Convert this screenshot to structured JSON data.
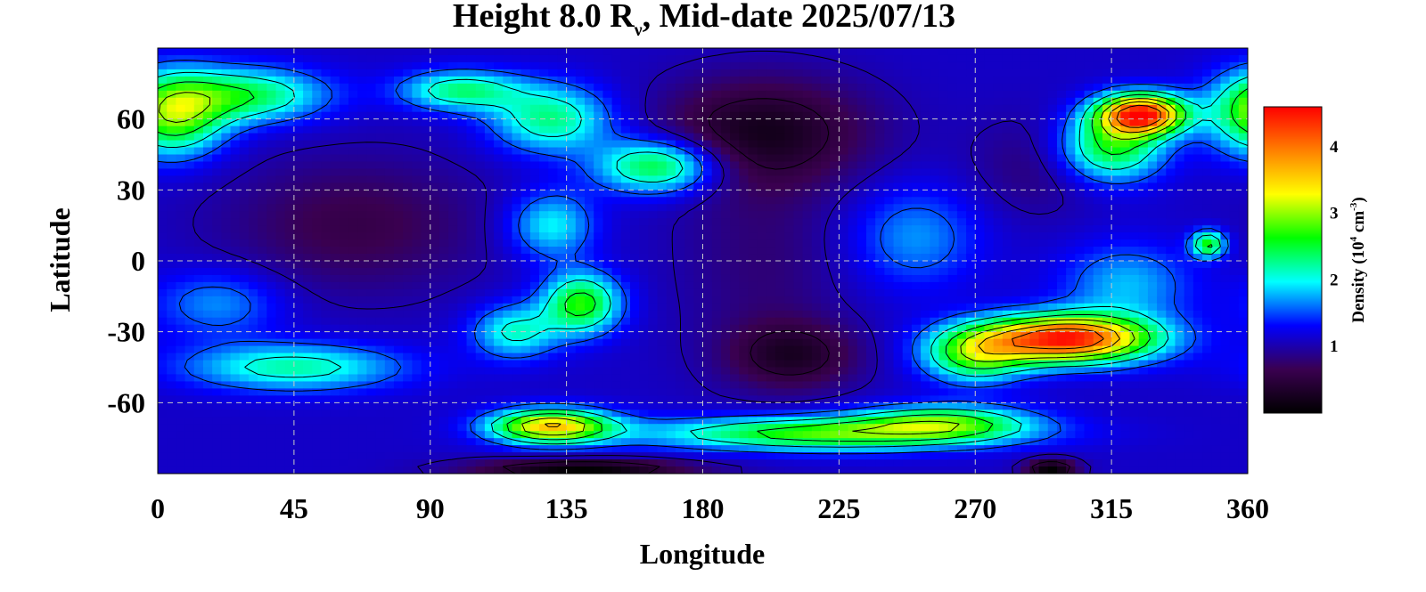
{
  "chart_data": {
    "type": "heatmap",
    "title": {
      "prefix": "Height 8.0 R",
      "subscript": "ν",
      "suffix": ", Mid-date 2025/07/13"
    },
    "xlabel": "Longitude",
    "ylabel": "Latitude",
    "xlim": [
      0,
      360
    ],
    "ylim": [
      -90,
      90
    ],
    "x_ticks": [
      0,
      45,
      90,
      135,
      180,
      225,
      270,
      315,
      360
    ],
    "y_ticks": [
      60,
      30,
      0,
      -30,
      -60
    ],
    "y_tick_labels": [
      "60",
      "30",
      "0",
      "-30",
      "-60"
    ],
    "grid": true,
    "colorbar": {
      "label_prefix": "Density (10",
      "label_exp": "4",
      "label_suffix": " cm",
      "label_exp2": "-3",
      "label_close": ")",
      "range": [
        0,
        4.6
      ],
      "ticks": [
        1,
        2,
        3,
        4
      ],
      "tick_labels": [
        "1",
        "2",
        "3",
        "4"
      ],
      "colormap": [
        "#000000",
        "#3a0050",
        "#0000ff",
        "#00ffff",
        "#00ff00",
        "#ffff00",
        "#ff8000",
        "#ff0000"
      ]
    },
    "contour_levels": [
      0.5,
      1.0,
      1.5,
      2.0,
      2.5,
      3.0,
      3.5,
      4.0
    ],
    "background_level": 1.1,
    "features": [
      {
        "lon": 5,
        "lat": 62,
        "value": 2.9,
        "sigma_lon": 12,
        "sigma_lat": 12
      },
      {
        "lon": 30,
        "lat": 70,
        "value": 2.4,
        "sigma_lon": 18,
        "sigma_lat": 8
      },
      {
        "lon": 100,
        "lat": 72,
        "value": 2.3,
        "sigma_lon": 14,
        "sigma_lat": 6
      },
      {
        "lon": 130,
        "lat": 60,
        "value": 2.3,
        "sigma_lon": 14,
        "sigma_lat": 10
      },
      {
        "lon": 165,
        "lat": 40,
        "value": 2.6,
        "sigma_lon": 14,
        "sigma_lat": 8
      },
      {
        "lon": 130,
        "lat": 15,
        "value": 2.0,
        "sigma_lon": 10,
        "sigma_lat": 10
      },
      {
        "lon": 140,
        "lat": -18,
        "value": 2.7,
        "sigma_lon": 9,
        "sigma_lat": 9
      },
      {
        "lon": 118,
        "lat": -30,
        "value": 2.1,
        "sigma_lon": 10,
        "sigma_lat": 8
      },
      {
        "lon": 45,
        "lat": -45,
        "value": 2.2,
        "sigma_lon": 25,
        "sigma_lat": 7
      },
      {
        "lon": 20,
        "lat": -18,
        "value": 1.7,
        "sigma_lon": 15,
        "sigma_lat": 10
      },
      {
        "lon": 130,
        "lat": -70,
        "value": 3.5,
        "sigma_lon": 14,
        "sigma_lat": 5
      },
      {
        "lon": 220,
        "lat": -73,
        "value": 2.8,
        "sigma_lon": 40,
        "sigma_lat": 5
      },
      {
        "lon": 260,
        "lat": -68,
        "value": 2.4,
        "sigma_lon": 20,
        "sigma_lat": 5
      },
      {
        "lon": 300,
        "lat": -33,
        "value": 4.5,
        "sigma_lon": 20,
        "sigma_lat": 7
      },
      {
        "lon": 270,
        "lat": -40,
        "value": 2.6,
        "sigma_lon": 12,
        "sigma_lat": 8
      },
      {
        "lon": 325,
        "lat": 62,
        "value": 4.4,
        "sigma_lon": 10,
        "sigma_lat": 6
      },
      {
        "lon": 315,
        "lat": 48,
        "value": 2.6,
        "sigma_lon": 12,
        "sigma_lat": 10
      },
      {
        "lon": 347,
        "lat": 7,
        "value": 2.6,
        "sigma_lon": 4,
        "sigma_lat": 4
      },
      {
        "lon": 250,
        "lat": 10,
        "value": 1.7,
        "sigma_lon": 15,
        "sigma_lat": 15
      },
      {
        "lon": 320,
        "lat": -10,
        "value": 1.8,
        "sigma_lon": 15,
        "sigma_lat": 12
      },
      {
        "lon": 65,
        "lat": 15,
        "value": 0.6,
        "sigma_lon": 30,
        "sigma_lat": 20
      },
      {
        "lon": 200,
        "lat": 55,
        "value": 0.3,
        "sigma_lon": 25,
        "sigma_lat": 16
      },
      {
        "lon": 210,
        "lat": -40,
        "value": 0.4,
        "sigma_lon": 15,
        "sigma_lat": 10
      },
      {
        "lon": 200,
        "lat": 0,
        "value": 0.8,
        "sigma_lon": 20,
        "sigma_lat": 35
      },
      {
        "lon": 290,
        "lat": 40,
        "value": 0.8,
        "sigma_lon": 15,
        "sigma_lat": 15
      },
      {
        "lon": 140,
        "lat": -88,
        "value": 0.0,
        "sigma_lon": 25,
        "sigma_lat": 3
      },
      {
        "lon": 295,
        "lat": -88,
        "value": 0.0,
        "sigma_lon": 6,
        "sigma_lat": 3
      }
    ]
  }
}
